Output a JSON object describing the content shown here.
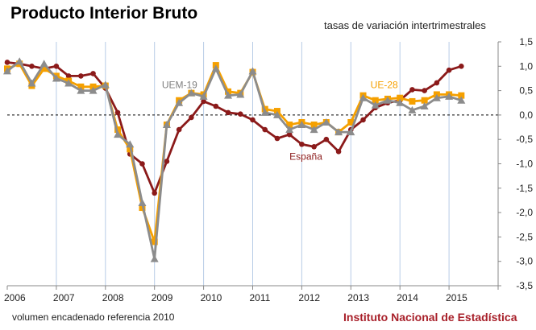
{
  "title": "Producto Interior Bruto",
  "subtitle": "tasas de variación intertrimestrales",
  "footnote": "volumen encadenado referencia 2010",
  "source": "Instituto Nacional de Estadística",
  "chart_data": {
    "type": "line",
    "x_tick_labels": [
      "2006",
      "2007",
      "2008",
      "2009",
      "2010",
      "2011",
      "2012",
      "2013",
      "2014",
      "2015"
    ],
    "y_tick_labels": [
      "1,5",
      "1,0",
      "0,5",
      "0,0",
      "-0,5",
      "-1,0",
      "-1,5",
      "-2,0",
      "-2,5",
      "-3,0",
      "-3,5"
    ],
    "ylim": [
      -3.5,
      1.5
    ],
    "x_range": [
      2006.0,
      2016.0
    ],
    "reference_line": 0.0,
    "grid": "vertical",
    "series": [
      {
        "name": "España",
        "color": "#8b1a1a",
        "marker": "circle",
        "x": [
          2006.0,
          2006.25,
          2006.5,
          2006.75,
          2007.0,
          2007.25,
          2007.5,
          2007.75,
          2008.0,
          2008.25,
          2008.5,
          2008.75,
          2009.0,
          2009.25,
          2009.5,
          2009.75,
          2010.0,
          2010.25,
          2010.5,
          2010.75,
          2011.0,
          2011.25,
          2011.5,
          2011.75,
          2012.0,
          2012.25,
          2012.5,
          2012.75,
          2013.0,
          2013.25,
          2013.5,
          2013.75,
          2014.0,
          2014.25,
          2014.5,
          2014.75,
          2015.0,
          2015.25
        ],
        "values": [
          1.08,
          1.05,
          1.0,
          0.95,
          1.0,
          0.8,
          0.8,
          0.85,
          0.55,
          0.05,
          -0.8,
          -1.0,
          -1.6,
          -0.95,
          -0.3,
          -0.05,
          0.28,
          0.18,
          0.05,
          0.02,
          -0.1,
          -0.3,
          -0.48,
          -0.4,
          -0.6,
          -0.65,
          -0.5,
          -0.75,
          -0.3,
          -0.1,
          0.15,
          0.25,
          0.3,
          0.52,
          0.5,
          0.66,
          0.92,
          1.0
        ]
      },
      {
        "name": "UE-28",
        "color": "#f5a000",
        "marker": "square",
        "x": [
          2006.0,
          2006.25,
          2006.5,
          2006.75,
          2007.0,
          2007.25,
          2007.5,
          2007.75,
          2008.0,
          2008.25,
          2008.5,
          2008.75,
          2009.0,
          2009.25,
          2009.5,
          2009.75,
          2010.0,
          2010.25,
          2010.5,
          2010.75,
          2011.0,
          2011.25,
          2011.5,
          2011.75,
          2012.0,
          2012.25,
          2012.5,
          2012.75,
          2013.0,
          2013.25,
          2013.5,
          2013.75,
          2014.0,
          2014.25,
          2014.5,
          2014.75,
          2015.0,
          2015.25
        ],
        "values": [
          0.95,
          1.05,
          0.6,
          0.95,
          0.8,
          0.7,
          0.58,
          0.58,
          0.6,
          -0.3,
          -0.7,
          -1.9,
          -2.6,
          -0.2,
          0.3,
          0.45,
          0.42,
          1.02,
          0.48,
          0.45,
          0.88,
          0.12,
          0.08,
          -0.2,
          -0.15,
          -0.2,
          -0.15,
          -0.35,
          -0.15,
          0.4,
          0.3,
          0.33,
          0.35,
          0.28,
          0.3,
          0.42,
          0.42,
          0.4
        ]
      },
      {
        "name": "UEM-19",
        "color": "#8c8c8c",
        "marker": "triangle",
        "x": [
          2006.0,
          2006.25,
          2006.5,
          2006.75,
          2007.0,
          2007.25,
          2007.5,
          2007.75,
          2008.0,
          2008.25,
          2008.5,
          2008.75,
          2009.0,
          2009.25,
          2009.5,
          2009.75,
          2010.0,
          2010.25,
          2010.5,
          2010.75,
          2011.0,
          2011.25,
          2011.5,
          2011.75,
          2012.0,
          2012.25,
          2012.5,
          2012.75,
          2013.0,
          2013.25,
          2013.5,
          2013.75,
          2014.0,
          2014.25,
          2014.5,
          2014.75,
          2015.0,
          2015.25
        ],
        "values": [
          0.9,
          1.1,
          0.65,
          1.05,
          0.75,
          0.65,
          0.5,
          0.5,
          0.62,
          -0.4,
          -0.6,
          -1.8,
          -2.95,
          -0.2,
          0.25,
          0.45,
          0.38,
          0.95,
          0.4,
          0.42,
          0.9,
          0.05,
          0.0,
          -0.3,
          -0.2,
          -0.3,
          -0.15,
          -0.35,
          -0.35,
          0.35,
          0.2,
          0.3,
          0.25,
          0.1,
          0.18,
          0.35,
          0.38,
          0.3
        ]
      }
    ],
    "series_labels": [
      "UEM-19",
      "UE-28",
      "España"
    ]
  }
}
